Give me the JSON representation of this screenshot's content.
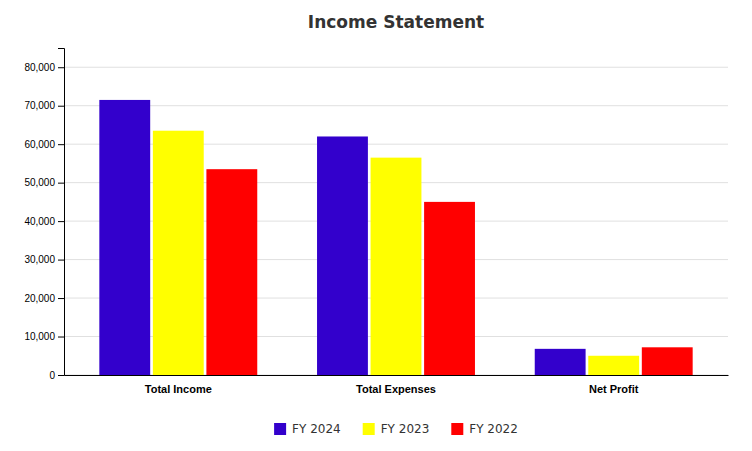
{
  "chart_data": {
    "type": "bar",
    "title": "Income Statement",
    "categories": [
      "Total Income",
      "Total Expenses",
      "Net Profit"
    ],
    "series": [
      {
        "name": "FY 2024",
        "color": "#3300CC",
        "values": [
          71500,
          62000,
          6800
        ]
      },
      {
        "name": "FY 2023",
        "color": "#FFFF00",
        "values": [
          63500,
          56500,
          5000
        ]
      },
      {
        "name": "FY 2022",
        "color": "#FF0000",
        "values": [
          53500,
          45000,
          7200
        ]
      }
    ],
    "ylim": [
      0,
      85000
    ],
    "yticks": [
      0,
      {
        "value": 10000,
        "label": "10,000"
      },
      {
        "value": 20000,
        "label": "20,000"
      },
      {
        "value": 30000,
        "label": "30,000"
      },
      {
        "value": 40000,
        "label": "40,000"
      },
      {
        "value": 50000,
        "label": "50,000"
      },
      {
        "value": 60000,
        "label": "60,000"
      },
      {
        "value": 70000,
        "label": "70,000"
      },
      {
        "value": 80000,
        "label": "80,000"
      }
    ],
    "grid": true,
    "legend": "bottom"
  }
}
